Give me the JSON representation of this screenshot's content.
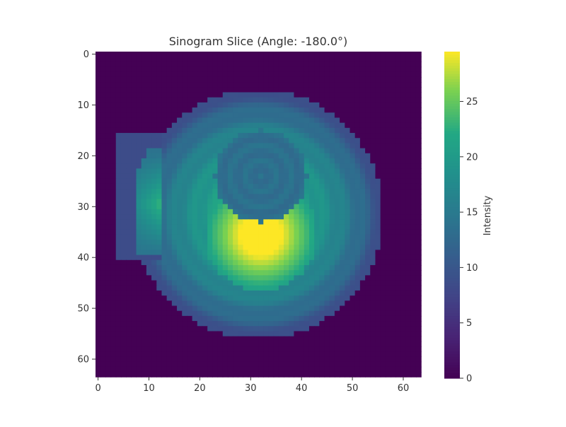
{
  "chart_data": {
    "type": "heatmap",
    "title": "Sinogram Slice (Angle: -180.0°)",
    "xlabel": "",
    "ylabel": "",
    "grid_size": [
      64,
      64
    ],
    "xlim": [
      -0.5,
      63.5
    ],
    "ylim": [
      63.5,
      -0.5
    ],
    "x_ticks": [
      0,
      10,
      20,
      30,
      40,
      50,
      60
    ],
    "y_ticks": [
      0,
      10,
      20,
      30,
      40,
      50,
      60
    ],
    "colormap": "viridis",
    "grid": false,
    "colorbar": {
      "label": "Intensity",
      "range": [
        0,
        29.5
      ],
      "ticks": [
        0,
        5,
        10,
        15,
        20,
        25
      ]
    },
    "features": [
      {
        "shape": "disk",
        "center": [
          31.5,
          31.5
        ],
        "radius": 24.5,
        "profile": "radial",
        "value_center": 22.5,
        "value_edge": 8.5,
        "ring_period": 4,
        "ring_amplitude": 0.9
      },
      {
        "shape": "disk",
        "center": [
          32,
          24
        ],
        "radius": 9,
        "value": 13.5,
        "ring_period": 3,
        "ring_amplitude": 0.9
      },
      {
        "shape": "crescent",
        "center": [
          32,
          35.5
        ],
        "radius": 11,
        "peak_value": 29.5
      },
      {
        "shape": "rectangle",
        "x_range": [
          4,
          12
        ],
        "y_range": [
          16,
          40
        ],
        "value": 8.5
      },
      {
        "shape": "rectangle_overlap",
        "x_range": [
          8,
          12
        ],
        "y_range": [
          19,
          39
        ],
        "peak_value": 23
      }
    ]
  },
  "colors": {
    "viridis_low": "#440154",
    "viridis_mid": "#21918c",
    "viridis_high": "#fde725",
    "axis": "#333333"
  }
}
